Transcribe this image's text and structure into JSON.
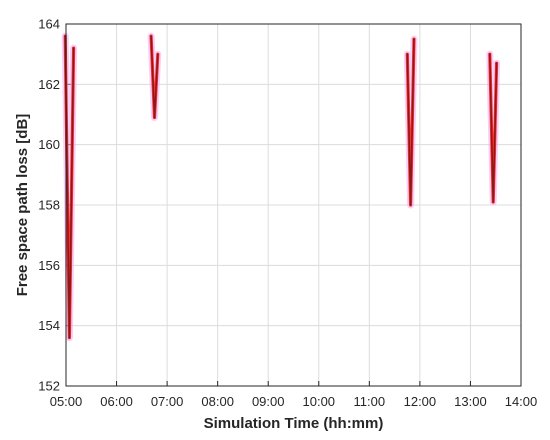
{
  "chart_data": {
    "type": "line",
    "title": "",
    "xlabel": "Simulation Time (hh:mm)",
    "ylabel": "Free space path loss [dB]",
    "xlim": [
      "05:00",
      "14:00"
    ],
    "ylim": [
      152,
      164
    ],
    "x_ticks": [
      "05:00",
      "06:00",
      "07:00",
      "08:00",
      "09:00",
      "10:00",
      "11:00",
      "12:00",
      "13:00",
      "14:00"
    ],
    "y_ticks": [
      152,
      154,
      156,
      158,
      160,
      162,
      164
    ],
    "grid": true,
    "legend": "none",
    "series": [
      {
        "color": "#8b1a1a",
        "highlight": "#ff3030",
        "glow": "#f4a8f4",
        "x": [
          "04:59",
          "05:04",
          "05:09"
        ],
        "y": [
          163.6,
          153.6,
          163.2
        ]
      },
      {
        "color": "#8b1a1a",
        "highlight": "#ff3030",
        "glow": "#f4a8f4",
        "x": [
          "06:41",
          "06:45",
          "06:49"
        ],
        "y": [
          163.6,
          160.9,
          163.0
        ]
      },
      {
        "color": "#8b1a1a",
        "highlight": "#ff3030",
        "glow": "#f4a8f4",
        "x": [
          "11:45",
          "11:49",
          "11:53"
        ],
        "y": [
          163.0,
          158.0,
          163.5
        ]
      },
      {
        "color": "#8b1a1a",
        "highlight": "#ff3030",
        "glow": "#f4a8f4",
        "x": [
          "13:23",
          "13:27",
          "13:31"
        ],
        "y": [
          163.0,
          158.1,
          162.7
        ]
      }
    ]
  }
}
